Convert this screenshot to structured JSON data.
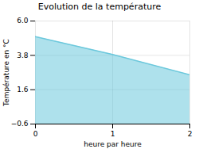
{
  "chart_data": {
    "type": "area",
    "title": "Evolution de la température",
    "xlabel": "heure par heure",
    "ylabel": "Température en °C",
    "x": [
      0,
      1,
      2
    ],
    "values": [
      5.0,
      3.85,
      2.55
    ],
    "xlim": [
      0,
      2
    ],
    "ylim": [
      -0.6,
      6.0
    ],
    "xticks": [
      0,
      1,
      2
    ],
    "yticks": [
      -0.6,
      1.6,
      3.8,
      {
        "value": 6.0,
        "label": "6.0"
      }
    ],
    "color": "#6cc8dc",
    "grid": true
  }
}
